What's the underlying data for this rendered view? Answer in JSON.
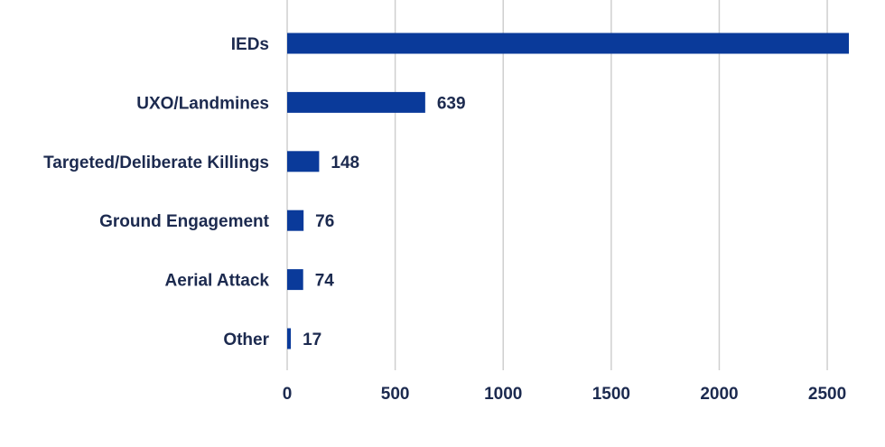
{
  "chart_data": {
    "type": "bar",
    "orientation": "horizontal",
    "title": "",
    "xlabel": "",
    "ylabel": "",
    "categories": [
      "IEDs",
      "UXO/Landmines",
      "Targeted/Deliberate Killings",
      "Ground Engagement",
      "Aerial Attack",
      "Other"
    ],
    "values": [
      2650,
      639,
      148,
      76,
      74,
      17
    ],
    "value_labels": [
      "",
      "639",
      "148",
      "76",
      "74",
      "17"
    ],
    "xlim": [
      0,
      2600
    ],
    "xticks": [
      0,
      500,
      1000,
      1500,
      2000,
      2500
    ],
    "grid": true,
    "legend": "none",
    "bar_color": "#0a3a9a"
  }
}
